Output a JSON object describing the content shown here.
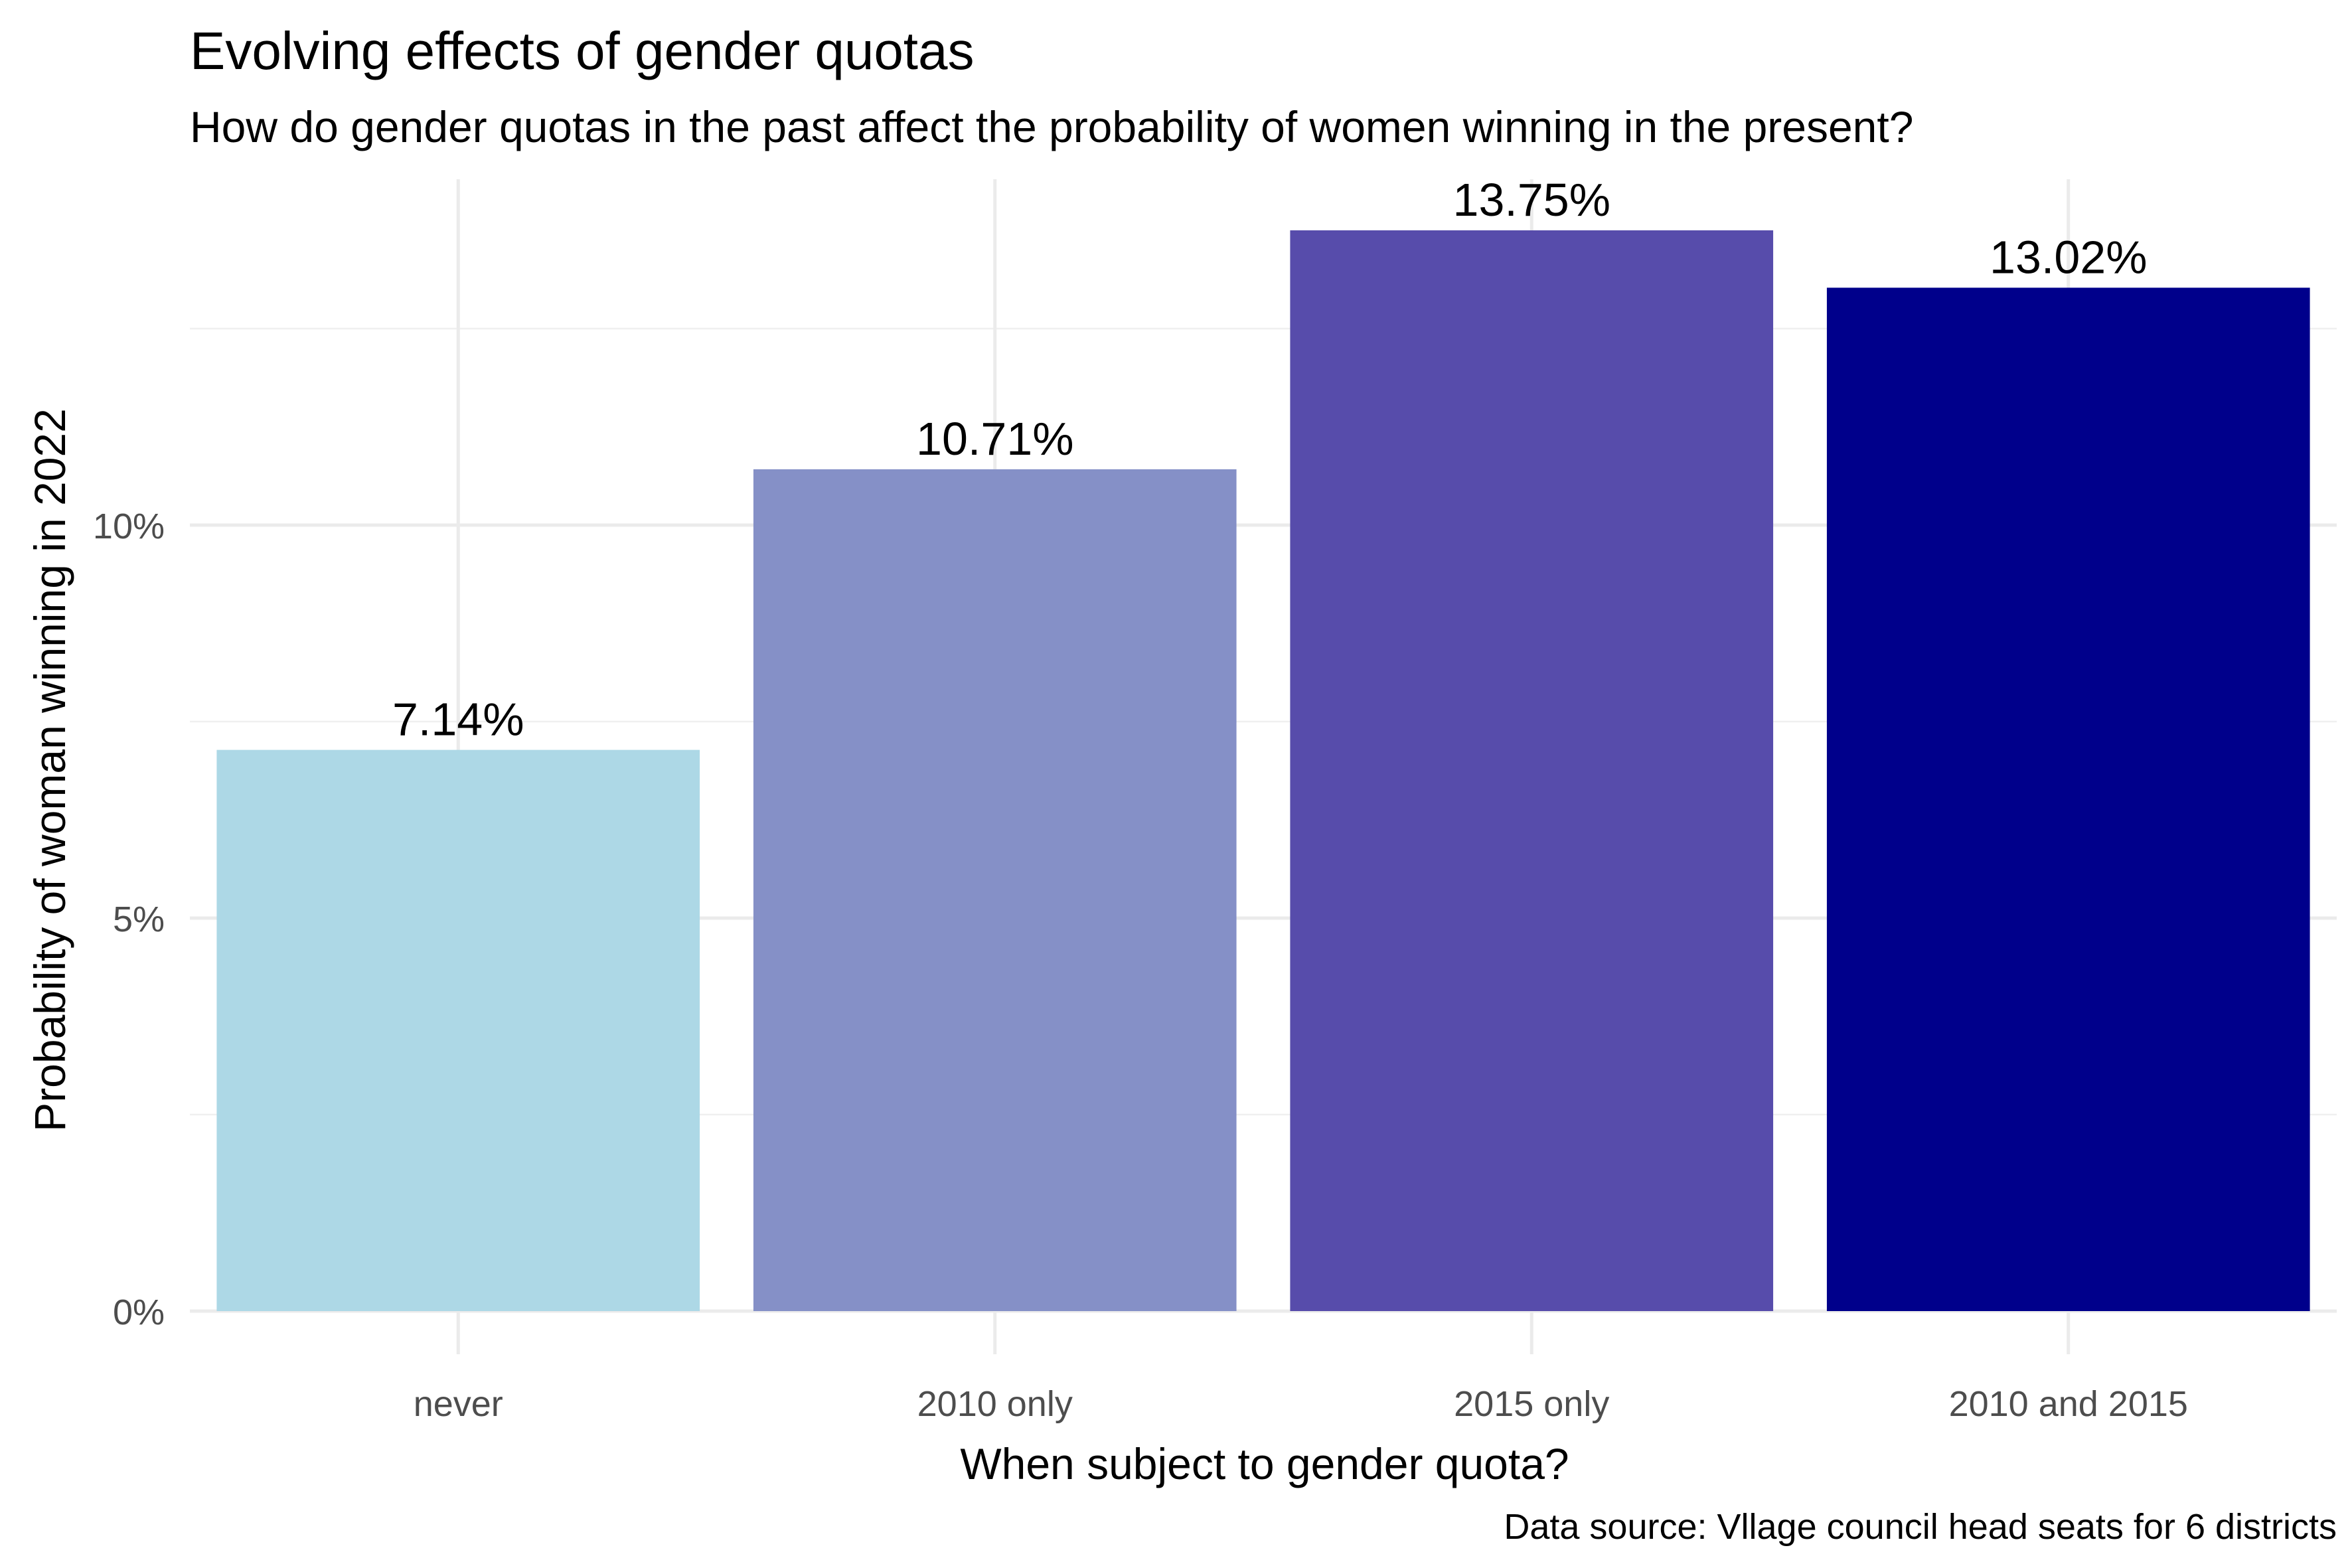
{
  "chart_data": {
    "type": "bar",
    "title": "Evolving effects of gender quotas",
    "subtitle": "How do gender quotas in the past affect the probability of women winning in the present?",
    "xlabel": "When subject to gender quota?",
    "ylabel": "Probability of woman winning in 2022",
    "caption": "Data source: Vllage council head seats for 6 districts",
    "categories": [
      "never",
      "2010 only",
      "2015 only",
      "2010 and 2015"
    ],
    "values": [
      7.14,
      10.71,
      13.75,
      13.02
    ],
    "value_labels": [
      "7.14%",
      "10.71%",
      "13.75%",
      "13.02%"
    ],
    "colors": [
      "#ADD8E6",
      "#8590C7",
      "#574CAB",
      "#00008B"
    ],
    "ylim": [
      0,
      14.4
    ],
    "yticks": [
      0,
      5,
      10
    ],
    "ytick_labels": [
      "0%",
      "5%",
      "10%"
    ],
    "grid": true,
    "legend": "none"
  }
}
